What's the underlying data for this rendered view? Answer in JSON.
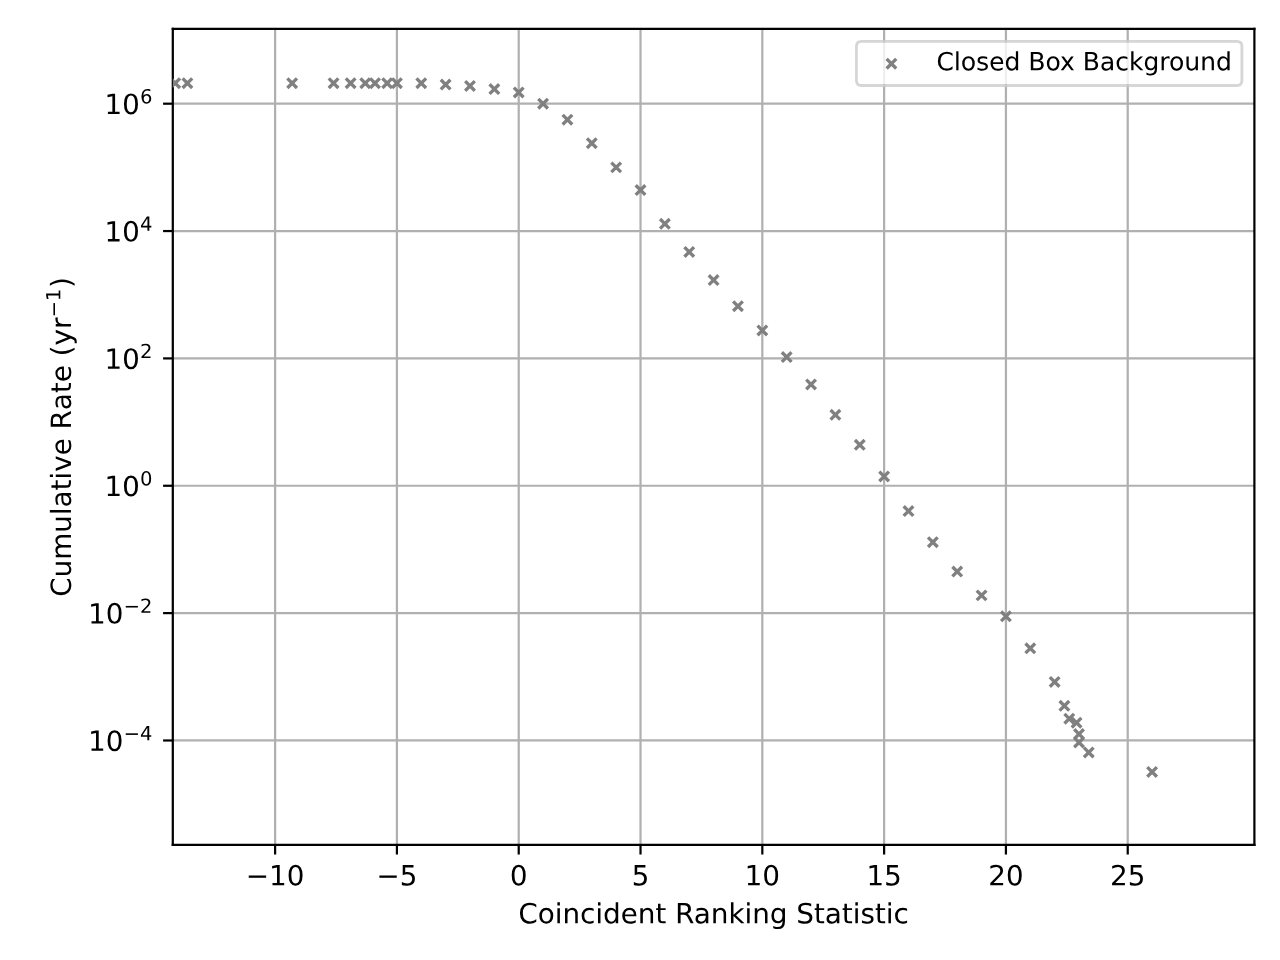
{
  "chart_data": {
    "type": "scatter",
    "xlabel": "Coincident Ranking Statistic",
    "ylabel": "Cumulative Rate (yr$^{−1}$)",
    "log": "y",
    "grid": true,
    "legend": "top right",
    "marker": "cross",
    "xlim": [
      -14.2,
      30.2
    ],
    "ylim": [
      2.3e-06,
      15000000.0
    ],
    "xticks": [
      {
        "value": -10,
        "label": "−10"
      },
      {
        "value": -5,
        "label": "−5"
      },
      0,
      5,
      10,
      15,
      20,
      25
    ],
    "yticks": [
      {
        "value": 0.0001,
        "label": "10$^{−4}$"
      },
      {
        "value": 0.01,
        "label": "10$^{−2}$"
      },
      {
        "value": 1,
        "label": "10$^{0}$"
      },
      {
        "value": 100,
        "label": "10$^{2}$"
      },
      {
        "value": 10000,
        "label": "10$^{4}$"
      },
      {
        "value": 1000000,
        "label": "10$^{6}$"
      }
    ],
    "series": [
      {
        "name": "Closed Box Background",
        "color": "#808080",
        "x": [
          -14.1,
          -13.6,
          -9.3,
          -7.6,
          -6.9,
          -6.3,
          -5.9,
          -5.4,
          -5,
          -4,
          -3,
          -2,
          -1,
          0,
          1,
          2,
          3,
          4,
          5,
          6,
          7,
          8,
          9,
          10,
          11,
          12,
          13,
          14,
          15,
          16,
          17,
          18,
          19,
          20,
          21,
          22,
          22.4,
          22.6,
          22.9,
          23.0,
          23.0,
          23.4,
          26.0
        ],
        "values": [
          2100000.0,
          2100000.0,
          2100000.0,
          2100000.0,
          2100000.0,
          2100000.0,
          2100000.0,
          2100000.0,
          2100000.0,
          2100000.0,
          2000000.0,
          1900000.0,
          1700000.0,
          1500000.0,
          1000000.0,
          560000.0,
          240000.0,
          100000.0,
          44000.0,
          13000.0,
          4700.0,
          1700.0,
          660,
          275,
          105,
          39,
          13,
          4.4,
          1.4,
          0.4,
          0.13,
          0.045,
          0.019,
          0.0089,
          0.0028,
          0.00083,
          0.00035,
          0.00022,
          0.00019,
          0.000126,
          9.3e-05,
          6.5e-05,
          3.2e-05
        ]
      }
    ]
  }
}
